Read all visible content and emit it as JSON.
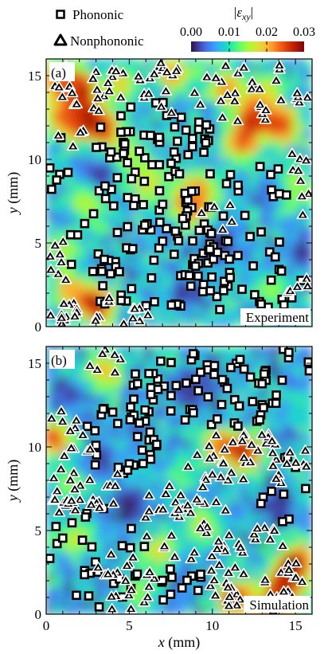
{
  "legend": {
    "phononic_label": "Phononic",
    "nonphononic_label": "Nonphononic",
    "colorbar_title_symbol": "ε",
    "colorbar_title_subscript": "xy",
    "colorbar_ticks": [
      "0.00",
      "0.01",
      "0.02",
      "0.03"
    ],
    "colorbar_range": [
      0,
      0.035
    ],
    "colormap": [
      "#30123b",
      "#4145ab",
      "#4675ed",
      "#39a2fc",
      "#1bcfd4",
      "#24eca6",
      "#61fc6c",
      "#a4fc3b",
      "#d1e834",
      "#f3c63a",
      "#fe9b2d",
      "#f36315",
      "#d93806",
      "#b11901",
      "#7a0402"
    ]
  },
  "chart_data": [
    {
      "type": "heatmap",
      "panel_label": "(a)",
      "tag": "Experiment",
      "xlim": [
        0,
        16
      ],
      "ylim": [
        0,
        16
      ],
      "x_ticks": [
        "0",
        "5",
        "10",
        "15"
      ],
      "y_ticks": [
        "0",
        "5",
        "10",
        "15"
      ],
      "xlabel_symbol": "",
      "xlabel_unit": "",
      "ylabel_symbol": "y",
      "ylabel_unit": " (mm)",
      "background_value": 0.009,
      "hotspots": [
        {
          "x": 3.0,
          "y": 1.3,
          "value": 0.034
        },
        {
          "x": 1.5,
          "y": 2.2,
          "value": 0.024
        },
        {
          "x": 0.8,
          "y": 14.8,
          "value": 0.027
        },
        {
          "x": 2.1,
          "y": 14.2,
          "value": 0.031
        },
        {
          "x": 4.5,
          "y": 14.5,
          "value": 0.022
        },
        {
          "x": 7.6,
          "y": 15.2,
          "value": 0.024
        },
        {
          "x": 10.8,
          "y": 14.3,
          "value": 0.025
        },
        {
          "x": 13.2,
          "y": 14.0,
          "value": 0.019
        },
        {
          "x": 2.3,
          "y": 12.4,
          "value": 0.034
        },
        {
          "x": 1.0,
          "y": 12.6,
          "value": 0.026
        },
        {
          "x": 3.5,
          "y": 11.9,
          "value": 0.029
        },
        {
          "x": 12.5,
          "y": 12.6,
          "value": 0.032
        },
        {
          "x": 14.3,
          "y": 12.1,
          "value": 0.031
        },
        {
          "x": 11.8,
          "y": 11.0,
          "value": 0.029
        },
        {
          "x": 9.2,
          "y": 8.2,
          "value": 0.024
        },
        {
          "x": 8.7,
          "y": 7.2,
          "value": 0.028
        },
        {
          "x": 6.3,
          "y": 8.6,
          "value": 0.021
        },
        {
          "x": 2.5,
          "y": 7.5,
          "value": 0.02
        },
        {
          "x": 5.0,
          "y": 10.2,
          "value": 0.018
        },
        {
          "x": 14.8,
          "y": 8.2,
          "value": 0.02
        },
        {
          "x": 1.0,
          "y": 4.6,
          "value": 0.018
        },
        {
          "x": 13.6,
          "y": 2.1,
          "value": 0.016
        }
      ],
      "low_regions": [
        {
          "x": 10.5,
          "y": 5.0,
          "value": 0.0
        },
        {
          "x": 3.2,
          "y": 9.0,
          "value": 0.001
        },
        {
          "x": 8.4,
          "y": 2.0,
          "value": 0.001
        },
        {
          "x": 15.3,
          "y": 4.5,
          "value": 0.001
        },
        {
          "x": 13.5,
          "y": 8.0,
          "value": 0.002
        }
      ],
      "phononic_regions": [
        {
          "x": 5.9,
          "y": 5.0,
          "rx": 4.7,
          "ry": 4.3,
          "count": 95
        },
        {
          "x": 6.4,
          "y": 11.3,
          "rx": 3.6,
          "ry": 2.2,
          "count": 45
        },
        {
          "x": 12.3,
          "y": 3.0,
          "rx": 3.7,
          "ry": 2.8,
          "count": 42
        },
        {
          "x": 12.1,
          "y": 8.0,
          "rx": 2.5,
          "ry": 2.2,
          "count": 14
        },
        {
          "x": 9.0,
          "y": 10.0,
          "rx": 1.6,
          "ry": 1.6,
          "count": 6
        },
        {
          "x": 0.8,
          "y": 9.5,
          "rx": 0.8,
          "ry": 1.8,
          "count": 6
        }
      ],
      "nonphononic_regions": [
        {
          "x": 3.1,
          "y": 0.8,
          "rx": 3.1,
          "ry": 1.0,
          "count": 24
        },
        {
          "x": 0.9,
          "y": 3.1,
          "rx": 0.9,
          "ry": 2.6,
          "count": 10
        },
        {
          "x": 2.7,
          "y": 14.4,
          "rx": 2.7,
          "ry": 1.6,
          "count": 26
        },
        {
          "x": 7.1,
          "y": 14.3,
          "rx": 2.0,
          "ry": 1.6,
          "count": 18
        },
        {
          "x": 12.4,
          "y": 14.0,
          "rx": 3.4,
          "ry": 1.9,
          "count": 32
        },
        {
          "x": 15.1,
          "y": 9.0,
          "rx": 0.8,
          "ry": 2.7,
          "count": 9
        },
        {
          "x": 15.1,
          "y": 3.0,
          "rx": 0.7,
          "ry": 1.8,
          "count": 5
        },
        {
          "x": 10.2,
          "y": 6.7,
          "rx": 1.2,
          "ry": 1.2,
          "count": 5
        },
        {
          "x": 1.3,
          "y": 11.4,
          "rx": 1.0,
          "ry": 1.0,
          "count": 5
        }
      ]
    },
    {
      "type": "heatmap",
      "panel_label": "(b)",
      "tag": "Simulation",
      "xlim": [
        0,
        16
      ],
      "ylim": [
        0,
        16
      ],
      "x_ticks": [
        "0",
        "5",
        "10",
        "15"
      ],
      "y_ticks": [
        "0",
        "5",
        "10",
        "15"
      ],
      "xlabel_symbol": "x",
      "xlabel_unit": " (mm)",
      "ylabel_symbol": "y",
      "ylabel_unit": " (mm)",
      "background_value": 0.008,
      "hotspots": [
        {
          "x": 12.0,
          "y": 9.7,
          "value": 0.033
        },
        {
          "x": 10.4,
          "y": 10.2,
          "value": 0.027
        },
        {
          "x": 11.3,
          "y": 1.0,
          "value": 0.034
        },
        {
          "x": 13.7,
          "y": 0.6,
          "value": 0.031
        },
        {
          "x": 15.0,
          "y": 3.1,
          "value": 0.035
        },
        {
          "x": 14.4,
          "y": 1.8,
          "value": 0.03
        },
        {
          "x": 0.5,
          "y": 10.6,
          "value": 0.031
        },
        {
          "x": 3.5,
          "y": 14.6,
          "value": 0.024
        },
        {
          "x": 1.8,
          "y": 4.5,
          "value": 0.02
        },
        {
          "x": 6.8,
          "y": 3.8,
          "value": 0.022
        },
        {
          "x": 9.4,
          "y": 5.4,
          "value": 0.019
        },
        {
          "x": 1.4,
          "y": 7.8,
          "value": 0.017
        },
        {
          "x": 8.2,
          "y": 8.5,
          "value": 0.015
        },
        {
          "x": 5.6,
          "y": 1.4,
          "value": 0.017
        },
        {
          "x": 15.4,
          "y": 12.7,
          "value": 0.012
        }
      ],
      "low_regions": [
        {
          "x": 5.0,
          "y": 6.5,
          "value": 0.0
        },
        {
          "x": 14.0,
          "y": 6.5,
          "value": 0.001
        },
        {
          "x": 9.0,
          "y": 13.5,
          "value": 0.001
        },
        {
          "x": 1.3,
          "y": 13.0,
          "value": 0.002
        },
        {
          "x": 3.5,
          "y": 9.3,
          "value": 0.003
        }
      ],
      "phononic_regions": [
        {
          "x": 9.3,
          "y": 13.2,
          "rx": 4.8,
          "ry": 2.4,
          "count": 65
        },
        {
          "x": 4.4,
          "y": 10.6,
          "rx": 2.3,
          "ry": 2.4,
          "count": 32
        },
        {
          "x": 3.0,
          "y": 3.5,
          "rx": 3.0,
          "ry": 3.2,
          "count": 30
        },
        {
          "x": 8.0,
          "y": 2.0,
          "rx": 1.6,
          "ry": 1.9,
          "count": 12
        },
        {
          "x": 14.3,
          "y": 7.5,
          "rx": 1.6,
          "ry": 2.0,
          "count": 10
        },
        {
          "x": 14.5,
          "y": 14.8,
          "rx": 1.5,
          "ry": 1.2,
          "count": 7
        }
      ],
      "nonphononic_regions": [
        {
          "x": 12.1,
          "y": 9.2,
          "rx": 3.9,
          "ry": 1.8,
          "count": 42
        },
        {
          "x": 12.8,
          "y": 2.6,
          "rx": 3.2,
          "ry": 2.6,
          "count": 55
        },
        {
          "x": 8.5,
          "y": 5.8,
          "rx": 2.8,
          "ry": 2.5,
          "count": 34
        },
        {
          "x": 2.2,
          "y": 7.8,
          "rx": 2.2,
          "ry": 2.3,
          "count": 34
        },
        {
          "x": 4.8,
          "y": 1.9,
          "rx": 2.0,
          "ry": 1.9,
          "count": 22
        },
        {
          "x": 1.2,
          "y": 11.0,
          "rx": 1.2,
          "ry": 1.3,
          "count": 8
        },
        {
          "x": 3.8,
          "y": 15.0,
          "rx": 1.3,
          "ry": 0.9,
          "count": 7
        }
      ]
    }
  ]
}
